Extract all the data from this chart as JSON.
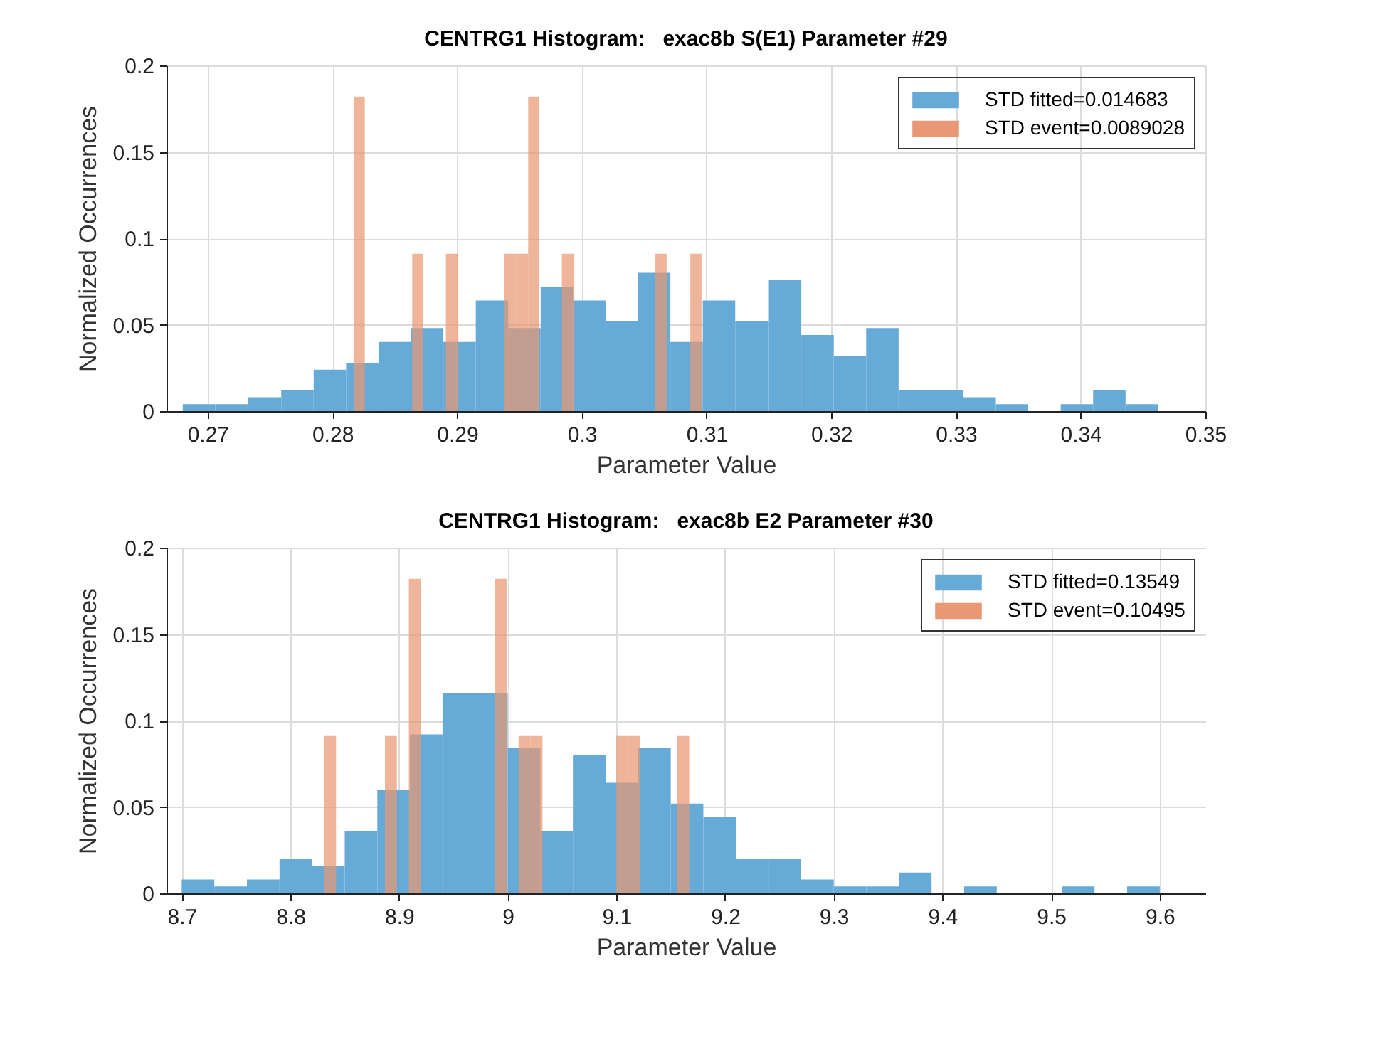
{
  "chart_data": [
    {
      "type": "histogram",
      "title": "CENTRG1 Histogram:   exac8b S(E1) Parameter #29",
      "xlabel": "Parameter Value",
      "ylabel": "Normalized Occurrences",
      "xlim": [
        0.2667,
        0.35
      ],
      "xticks": [
        0.27,
        0.28,
        0.29,
        0.3,
        0.31,
        0.32,
        0.33,
        0.34,
        0.35
      ],
      "ylim": [
        0,
        0.2
      ],
      "yticks": [
        0,
        0.05,
        0.1,
        0.15,
        0.2
      ],
      "grid": true,
      "legend": "top right",
      "bins": [
        0.268,
        0.2706,
        0.2732,
        0.2759,
        0.2785,
        0.2811,
        0.2837,
        0.2863,
        0.2889,
        0.2915,
        0.2941,
        0.2967,
        0.2993,
        0.3019,
        0.3045,
        0.3071,
        0.3097,
        0.3123,
        0.315,
        0.3176,
        0.3202,
        0.3228,
        0.3254,
        0.328,
        0.3306,
        0.3332,
        0.3358,
        0.3384,
        0.341,
        0.3436,
        0.3462
      ],
      "series": [
        {
          "name": "STD fitted=0.014683",
          "color": "#66aad7",
          "values": [
            0.004,
            0.004,
            0.008,
            0.012,
            0.024,
            0.028,
            0.04,
            0.048,
            0.04,
            0.064,
            0.048,
            0.072,
            0.064,
            0.052,
            0.08,
            0.04,
            0.064,
            0.052,
            0.076,
            0.044,
            0.032,
            0.048,
            0.012,
            0.012,
            0.008,
            0.004,
            0,
            0.004,
            0.012,
            0.004
          ]
        },
        {
          "name": "STD event=0.0089028",
          "color": "#e89875",
          "bins": [
            0.2817,
            0.2826,
            0.2864,
            0.2873,
            0.2891,
            0.2901,
            0.2938,
            0.2947,
            0.2957,
            0.2966,
            0.2984,
            0.2994,
            0.3059,
            0.3068,
            0.3087,
            0.3096
          ],
          "values": [
            0.182,
            0,
            0.091,
            0,
            0.091,
            0,
            0.091,
            0.091,
            0.182,
            0,
            0.091,
            0,
            0.091,
            0,
            0.091
          ]
        }
      ]
    },
    {
      "type": "histogram",
      "title": "CENTRG1 Histogram:   exac8b E2 Parameter #30",
      "xlabel": "Parameter Value",
      "ylabel": "Normalized Occurrences",
      "xlim": [
        8.686,
        9.642
      ],
      "xticks": [
        8.7,
        8.8,
        8.9,
        9,
        9.1,
        9.2,
        9.3,
        9.4,
        9.5,
        9.6
      ],
      "ylim": [
        0,
        0.2
      ],
      "yticks": [
        0,
        0.05,
        0.1,
        0.15,
        0.2
      ],
      "grid": true,
      "legend": "top right",
      "bins": [
        8.7,
        8.73,
        8.76,
        8.79,
        8.82,
        8.85,
        8.88,
        8.91,
        8.94,
        8.97,
        9,
        9.03,
        9.06,
        9.09,
        9.12,
        9.15,
        9.18,
        9.21,
        9.24,
        9.27,
        9.3,
        9.33,
        9.36,
        9.39,
        9.42,
        9.45,
        9.48,
        9.51,
        9.54,
        9.57,
        9.6
      ],
      "series": [
        {
          "name": "STD fitted=0.13549",
          "color": "#66aad7",
          "values": [
            0.008,
            0.004,
            0.008,
            0.02,
            0.016,
            0.036,
            0.06,
            0.092,
            0.116,
            0.116,
            0.084,
            0.036,
            0.08,
            0.064,
            0.084,
            0.052,
            0.044,
            0.02,
            0.02,
            0.008,
            0.004,
            0.004,
            0.012,
            0,
            0.004,
            0,
            0,
            0.004,
            0,
            0.004
          ]
        },
        {
          "name": "STD event=0.10495",
          "color": "#e89875",
          "bins": [
            8.831,
            8.842,
            8.887,
            8.898,
            8.909,
            8.92,
            8.988,
            8.999,
            9.01,
            9.021,
            9.032,
            9.1,
            9.111,
            9.122,
            9.156,
            9.167
          ],
          "values": [
            0.091,
            0,
            0.091,
            0,
            0.182,
            0,
            0.182,
            0,
            0.091,
            0.091,
            0,
            0.091,
            0.091,
            0,
            0.091
          ]
        }
      ]
    }
  ]
}
